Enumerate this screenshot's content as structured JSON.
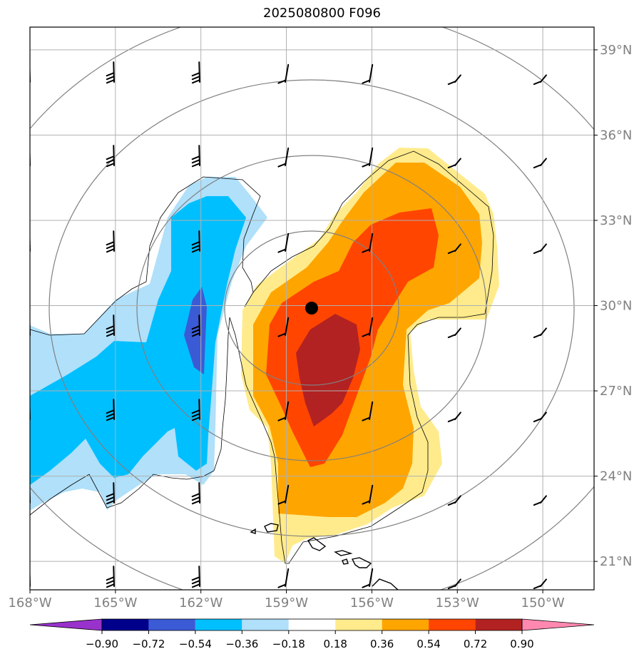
{
  "chart_data": {
    "type": "map",
    "title": "2025080800 F096",
    "x_ticks": [
      "168°W",
      "165°W",
      "162°W",
      "159°W",
      "156°W",
      "153°W",
      "150°W"
    ],
    "y_ticks": [
      "21°N",
      "24°N",
      "27°N",
      "30°N",
      "33°N",
      "36°N",
      "39°N"
    ],
    "lon_range": [
      -168,
      -148.2
    ],
    "lat_range": [
      20.0,
      39.8
    ],
    "grid": true,
    "storm_center": {
      "lon": -158.1,
      "lat": 29.8
    },
    "range_rings": 5,
    "colorbar": {
      "levels": [
        "-0.90",
        "-0.72",
        "-0.54",
        "-0.36",
        "-0.18",
        "0.18",
        "0.36",
        "0.54",
        "0.72",
        "0.90"
      ],
      "colors": [
        "#9932cc",
        "#00008b",
        "#3b5bd6",
        "#00bfff",
        "#b0e0fa",
        "#ffffff",
        "#ffeb8c",
        "#ffa500",
        "#ff4500",
        "#b22222",
        "#ff88b0"
      ],
      "extend": "both"
    },
    "colors": {
      "neg_strong": "#3b5bd6",
      "neg_mid": "#00bfff",
      "neg_weak": "#b0e0fa",
      "pos_weak": "#ffeb8c",
      "pos_mid": "#ffa500",
      "pos_strong": "#ff4500",
      "pos_max": "#b22222",
      "grid": "#b0b0b0",
      "rings": "#808080"
    }
  }
}
